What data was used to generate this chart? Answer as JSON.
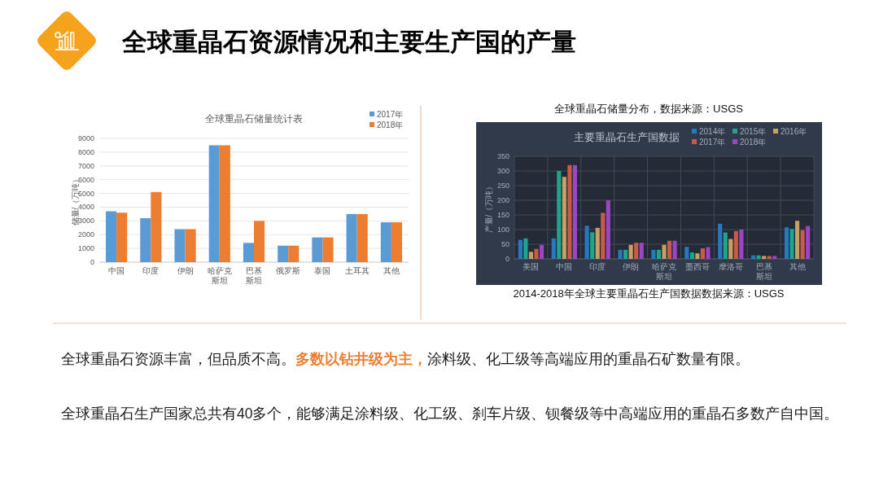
{
  "chart_data": [
    {
      "type": "other",
      "title": "全球重晶石资源情况和主要生产国的产量",
      "annotations": [
        "全球重晶石资源丰富，但品质不高。",
        "多数以钻井级为主，",
        "涂料级、化工级等高端应用的重晶石矿数量有限。",
        "全球重晶石生产国家总共有40多个，能够满足涂料级、化工级、刹车片级、钡餐级等中高端应用的重晶石多数产自中国。"
      ]
    },
    {
      "type": "bar",
      "title": "全球重晶石储量统计表",
      "ylabel": "储量/（万吨）",
      "categories": [
        "中国",
        "印度",
        "伊朗",
        "哈萨克斯坦",
        "巴基斯坦",
        "俄罗斯",
        "泰国",
        "土耳其",
        "其他"
      ],
      "series": [
        {
          "name": "2017年",
          "color": "#5b9bd5",
          "values": [
            3700,
            3200,
            2400,
            8500,
            1400,
            1200,
            1800,
            3500,
            2900
          ]
        },
        {
          "name": "2018年",
          "color": "#ed7d31",
          "values": [
            3600,
            5100,
            2400,
            8500,
            3000,
            1200,
            1800,
            3500,
            2900
          ]
        }
      ],
      "ylim": [
        0,
        9000
      ],
      "yticks": [
        0,
        1000,
        2000,
        3000,
        4000,
        5000,
        6000,
        7000,
        8000,
        9000
      ],
      "grid": "y",
      "legend": "top right"
    },
    {
      "type": "bar",
      "title": "主要重晶石生产国数据",
      "ylabel": "产量/（万吨）",
      "categories": [
        "美国",
        "中国",
        "印度",
        "伊朗",
        "哈萨克斯坦",
        "墨西哥",
        "摩洛哥",
        "巴基斯坦",
        "其他"
      ],
      "series": [
        {
          "name": "2014年",
          "color": "#2479c1",
          "values": [
            65,
            70,
            113,
            31,
            31,
            41,
            120,
            12,
            108
          ]
        },
        {
          "name": "2015年",
          "color": "#1ea58b",
          "values": [
            70,
            300,
            91,
            31,
            31,
            22,
            90,
            12,
            102
          ]
        },
        {
          "name": "2016年",
          "color": "#c9a063",
          "values": [
            24,
            280,
            106,
            48,
            48,
            19,
            68,
            10,
            130
          ]
        },
        {
          "name": "2017年",
          "color": "#c95c49",
          "values": [
            34,
            320,
            157,
            55,
            62,
            36,
            95,
            10,
            98
          ]
        },
        {
          "name": "2018年",
          "color": "#9c46c6",
          "values": [
            48,
            320,
            200,
            55,
            62,
            40,
            100,
            10,
            112
          ]
        }
      ],
      "ylim": [
        0,
        350
      ],
      "yticks": [
        0,
        50,
        100,
        150,
        200,
        250,
        300,
        350
      ],
      "grid": true,
      "legend": "top right",
      "annotations": [
        "全球重晶石储量分布，数据来源：USGS",
        "2014-2018年全球主要重晶石生产国数据数据来源：USGS"
      ]
    }
  ]
}
